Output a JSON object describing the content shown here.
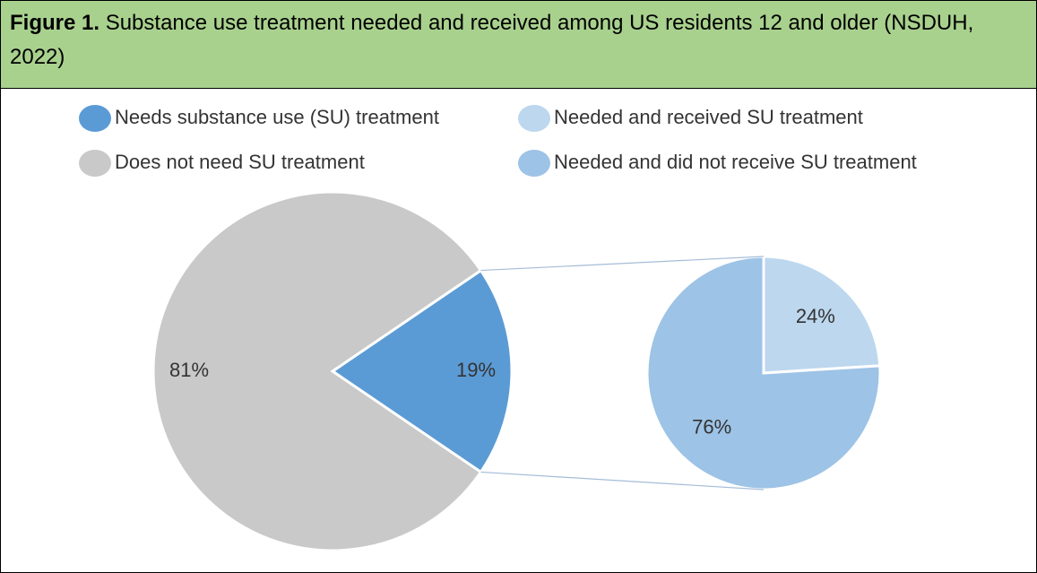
{
  "figure_label": "Figure 1.",
  "title": "Substance use treatment needed and received among US residents 12 and older (NSDUH, 2022)",
  "chart_data": [
    {
      "type": "pie",
      "categories": [
        "Needs substance use (SU) treatment",
        "Does not need SU treatment"
      ],
      "values": [
        19,
        81
      ],
      "value_labels": [
        "19%",
        "81%"
      ],
      "colors": [
        "#5b9bd5",
        "#c9c9c9"
      ]
    },
    {
      "type": "pie",
      "categories": [
        "Needed and received SU treatment",
        "Needed and did not receive SU treatment"
      ],
      "values": [
        24,
        76
      ],
      "value_labels": [
        "24%",
        "76%"
      ],
      "colors": [
        "#bdd7ee",
        "#9dc3e6"
      ]
    }
  ]
}
